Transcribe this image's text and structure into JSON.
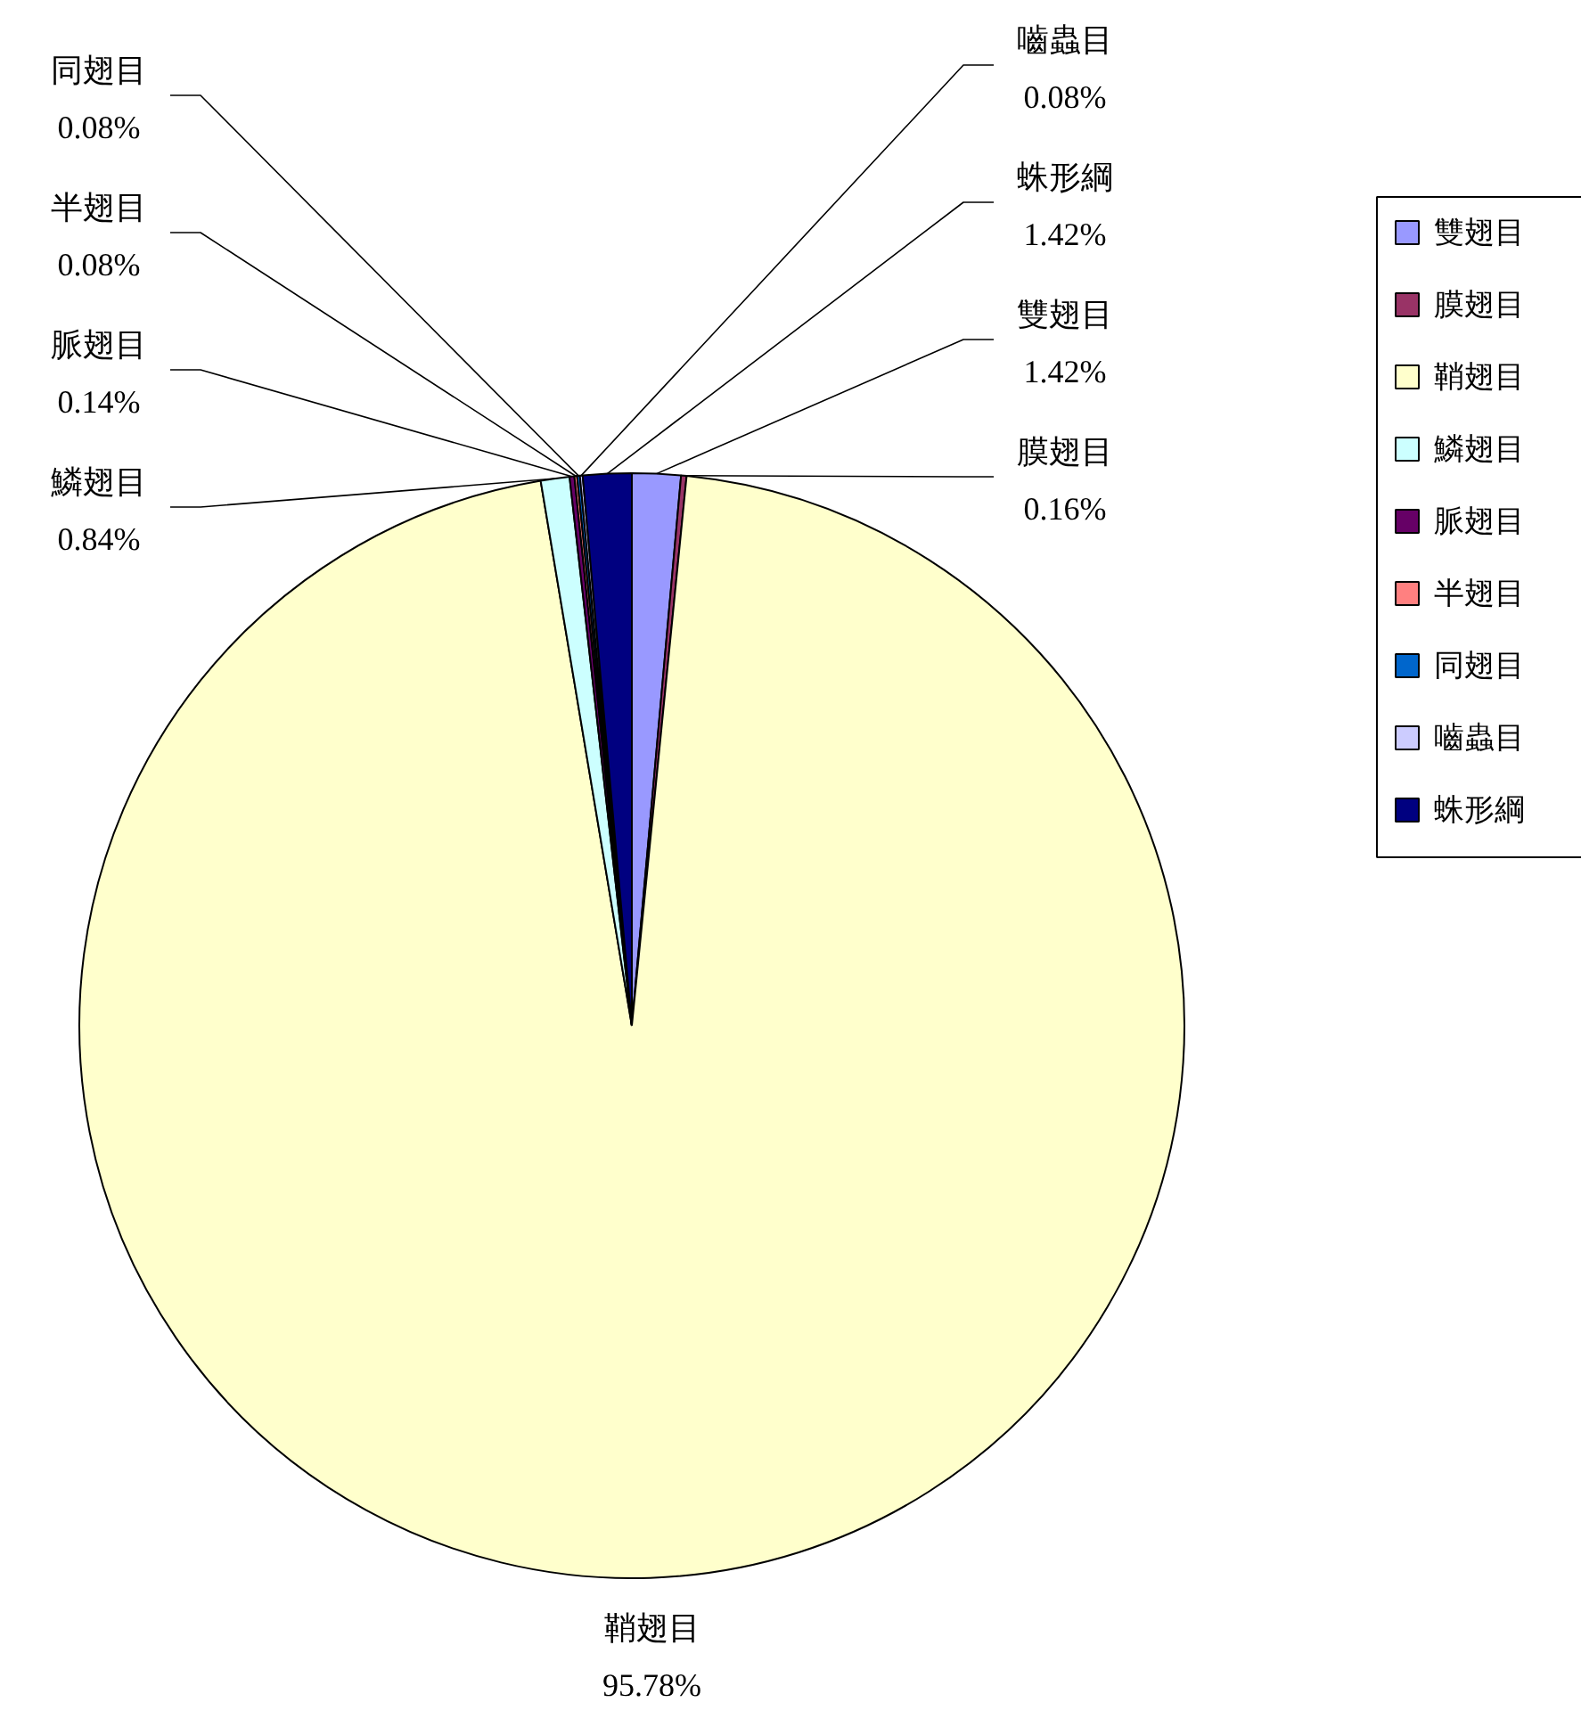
{
  "chart_data": {
    "type": "pie",
    "categories": [
      "雙翅目",
      "膜翅目",
      "鞘翅目",
      "鱗翅目",
      "脈翅目",
      "半翅目",
      "同翅目",
      "嚙蟲目",
      "蛛形綱"
    ],
    "values": [
      1.42,
      0.16,
      95.78,
      0.84,
      0.14,
      0.08,
      0.08,
      0.08,
      1.42
    ],
    "value_labels": [
      "1.42%",
      "0.16%",
      "95.78%",
      "0.84%",
      "0.14%",
      "0.08%",
      "0.08%",
      "0.08%",
      "1.42%"
    ],
    "colors": [
      "#9999ff",
      "#993366",
      "#ffffcc",
      "#ccffff",
      "#660066",
      "#ff8080",
      "#0066cc",
      "#ccccff",
      "#000080"
    ],
    "legend": "right"
  }
}
